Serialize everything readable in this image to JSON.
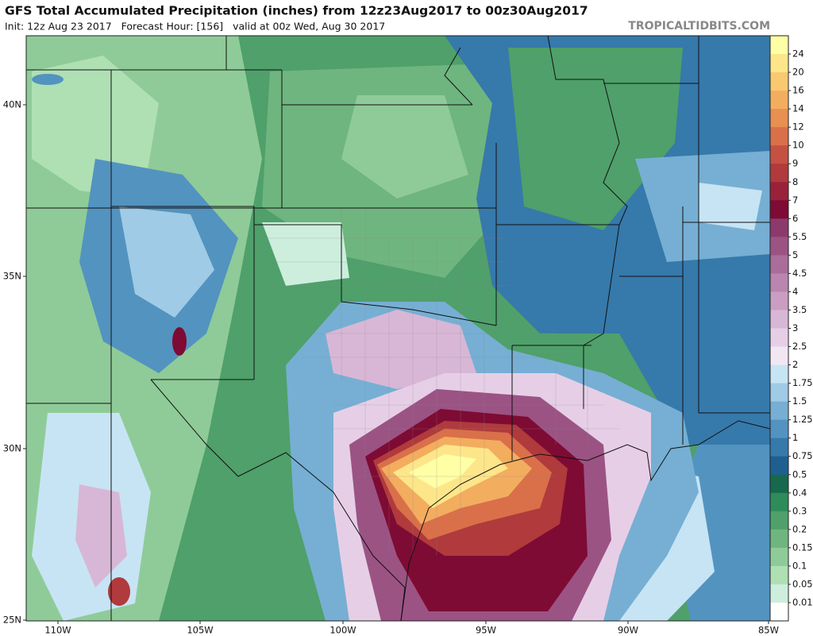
{
  "header": {
    "title": "GFS Total Accumulated Precipitation (inches) from 12z23Aug2017 to 00z30Aug2017",
    "subtitle": "Init: 12z Aug 23 2017   Forecast Hour: [156]   valid at 00z Wed, Aug 30 2017",
    "brand": "TROPICALTIDBITS.COM"
  },
  "map": {
    "lat_labels": [
      "40N",
      "35N",
      "30N",
      "25N"
    ],
    "lon_labels": [
      "110W",
      "105W",
      "100W",
      "95W",
      "90W",
      "85W"
    ]
  },
  "colorbar": {
    "labels": [
      "24",
      "20",
      "16",
      "14",
      "12",
      "10",
      "9",
      "8",
      "7",
      "6",
      "5.5",
      "5",
      "4.5",
      "4",
      "3.5",
      "3",
      "2.5",
      "2",
      "1.75",
      "1.5",
      "1.25",
      "1",
      "0.75",
      "0.5",
      "0.4",
      "0.3",
      "0.2",
      "0.15",
      "0.1",
      "0.05",
      "0.01"
    ],
    "colors": [
      "#ffffa6",
      "#fde68a",
      "#f9c970",
      "#f3ad5f",
      "#e88f52",
      "#d9704a",
      "#c55142",
      "#b03a3c",
      "#99213a",
      "#7e0b33",
      "#8c3a6c",
      "#9b5384",
      "#aa6c99",
      "#ba85ae",
      "#c99ec2",
      "#d8b7d6",
      "#e6cfe6",
      "#f3e6f3",
      "#c7e4f4",
      "#9fcbe6",
      "#76afd3",
      "#5393c0",
      "#3679ab",
      "#1f5f8f",
      "#16694c",
      "#2e8b5a",
      "#4fa06a",
      "#6fb57f",
      "#8fcb98",
      "#aee0b3",
      "#cdeedd",
      "#ffffff"
    ]
  }
}
